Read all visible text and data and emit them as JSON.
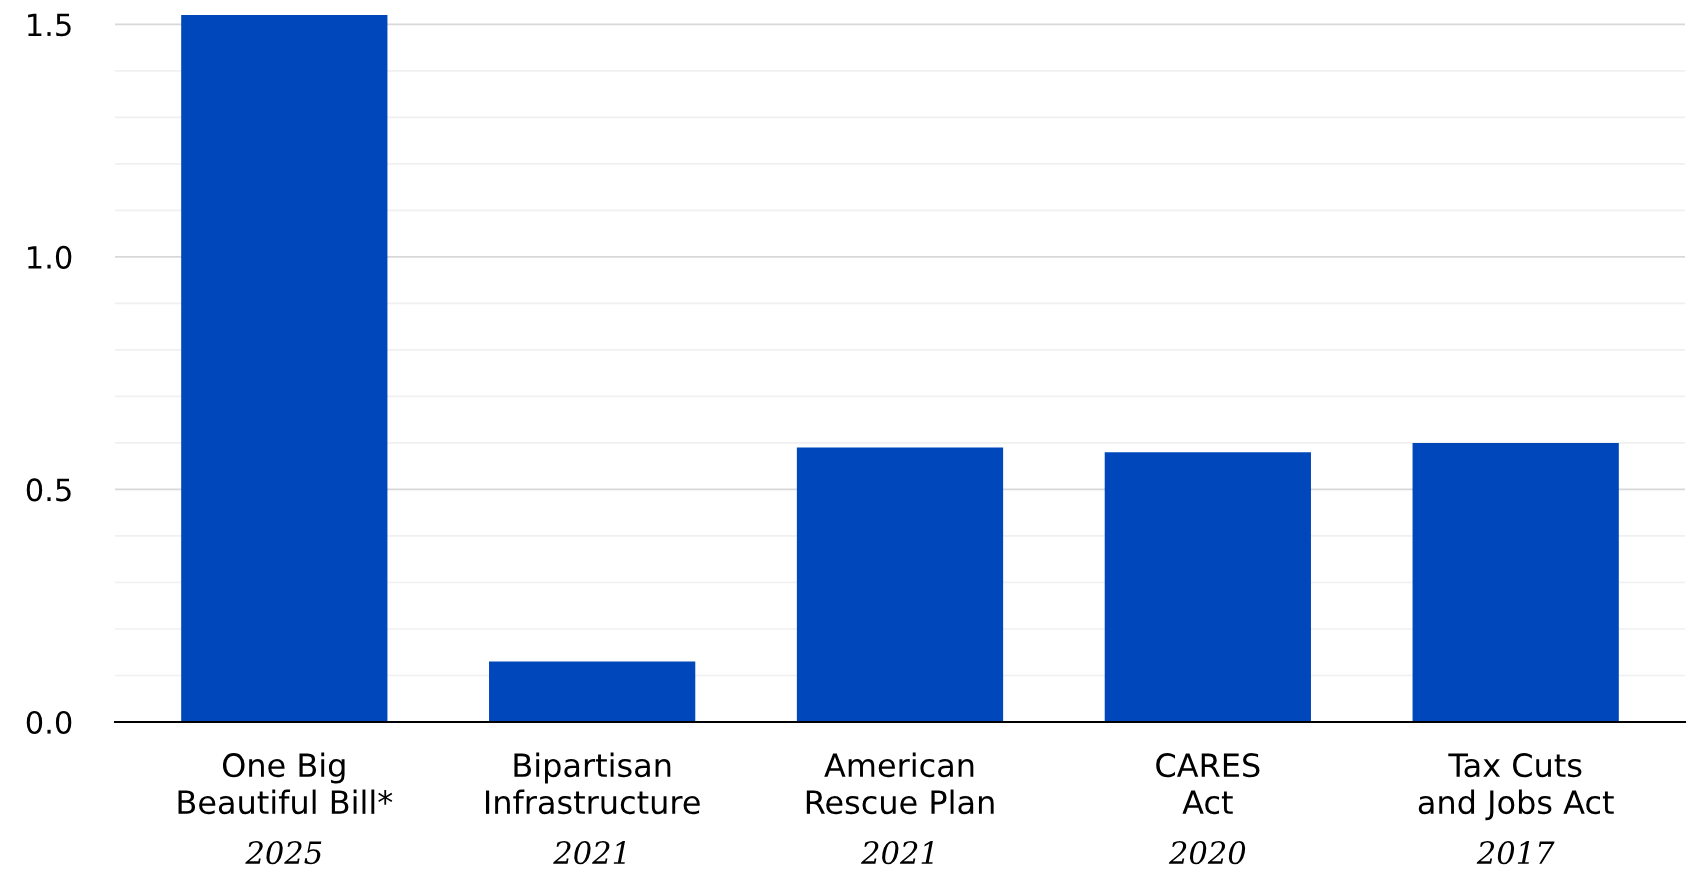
{
  "chart_data": {
    "type": "bar",
    "categories": [
      "One Big\nBeautiful Bill*\n2025",
      "Bipartisan\nInfrastructure\n2021",
      "American\nRescue Plan\n2021",
      "CARES\nAct\n2020",
      "Tax Cuts\nand Jobs Act\n2017"
    ],
    "values": [
      1.52,
      0.13,
      0.59,
      0.58,
      0.6
    ],
    "color": "#0047bb",
    "ylim": [
      0,
      1.52
    ],
    "yticks": [
      {
        "value": 0,
        "label": "0.0"
      },
      {
        "value": 0.1,
        "label": null
      },
      {
        "value": 0.2,
        "label": null
      },
      {
        "value": 0.3,
        "label": null
      },
      {
        "value": 0.4,
        "label": null
      },
      {
        "value": 0.5,
        "label": "0.5"
      },
      {
        "value": 0.6,
        "label": null
      },
      {
        "value": 0.7,
        "label": null
      },
      {
        "value": 0.8,
        "label": null
      },
      {
        "value": 0.9,
        "label": null
      },
      {
        "value": 1.0,
        "label": "1.0"
      },
      {
        "value": 1.1,
        "label": null
      },
      {
        "value": 1.2,
        "label": null
      },
      {
        "value": 1.3,
        "label": null
      },
      {
        "value": 1.4,
        "label": null
      },
      {
        "value": 1.5,
        "label": "1.5"
      }
    ],
    "grid": "y"
  }
}
